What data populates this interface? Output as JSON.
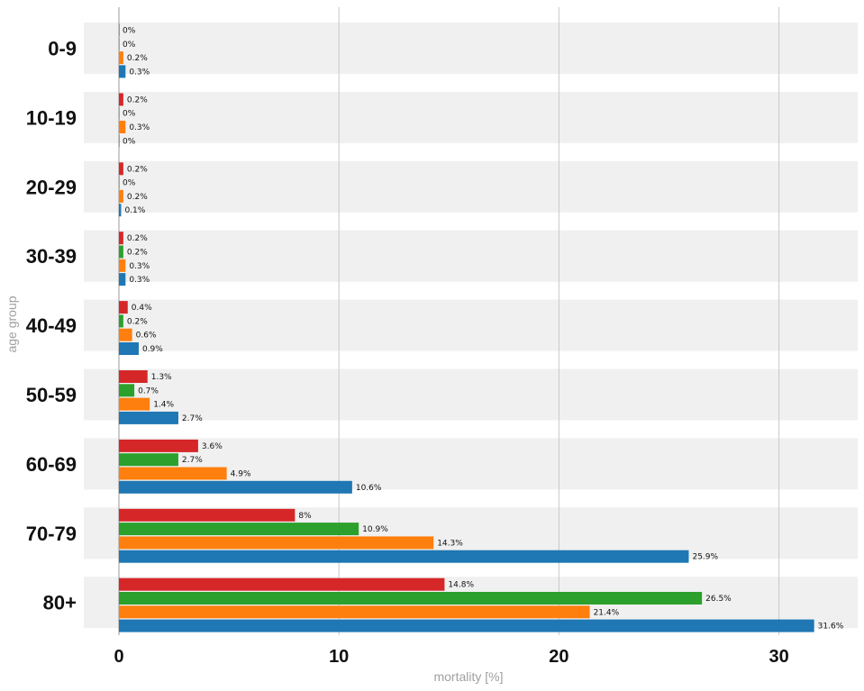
{
  "chart_data": {
    "type": "bar",
    "orientation": "horizontal",
    "title": "",
    "xlabel": "mortality [%]",
    "ylabel": "age group",
    "xlim": [
      -1.6,
      33.3
    ],
    "xticks": [
      "0",
      "10",
      "20",
      "30"
    ],
    "xtick_values": [
      0,
      10,
      20,
      30
    ],
    "value_suffix": "%",
    "grid": true,
    "legend": "none",
    "categories": [
      "0-9",
      "10-19",
      "20-29",
      "30-39",
      "40-49",
      "50-59",
      "60-69",
      "70-79",
      "80+"
    ],
    "series": [
      {
        "color": "#d62728",
        "values": [
          0,
          0.2,
          0.2,
          0.2,
          0.4,
          1.3,
          3.6,
          8,
          14.8
        ]
      },
      {
        "color": "#2ca02c",
        "values": [
          0,
          0,
          0,
          0.2,
          0.2,
          0.7,
          2.7,
          10.9,
          26.5
        ]
      },
      {
        "color": "#ff7f0e",
        "values": [
          0.2,
          0.3,
          0.2,
          0.3,
          0.6,
          1.4,
          4.9,
          14.3,
          21.4
        ]
      },
      {
        "color": "#1f77b4",
        "values": [
          0.3,
          0,
          0.1,
          0.3,
          0.9,
          2.7,
          10.6,
          25.9,
          31.6
        ]
      }
    ]
  }
}
